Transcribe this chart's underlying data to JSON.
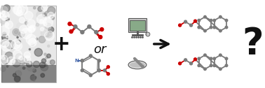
{
  "background_color": "#ffffff",
  "plus_text": "+",
  "or_text": "or",
  "question_text": "?",
  "plus_fontsize": 22,
  "or_fontsize": 13,
  "question_fontsize": 38,
  "arrow_color": "#111111",
  "text_color": "#111111",
  "bond_color_gray": "#7a7a7a",
  "bond_color_red": "#cc0000",
  "bond_color_blue": "#4466aa",
  "figsize": [
    3.78,
    1.26
  ],
  "dpi": 100
}
